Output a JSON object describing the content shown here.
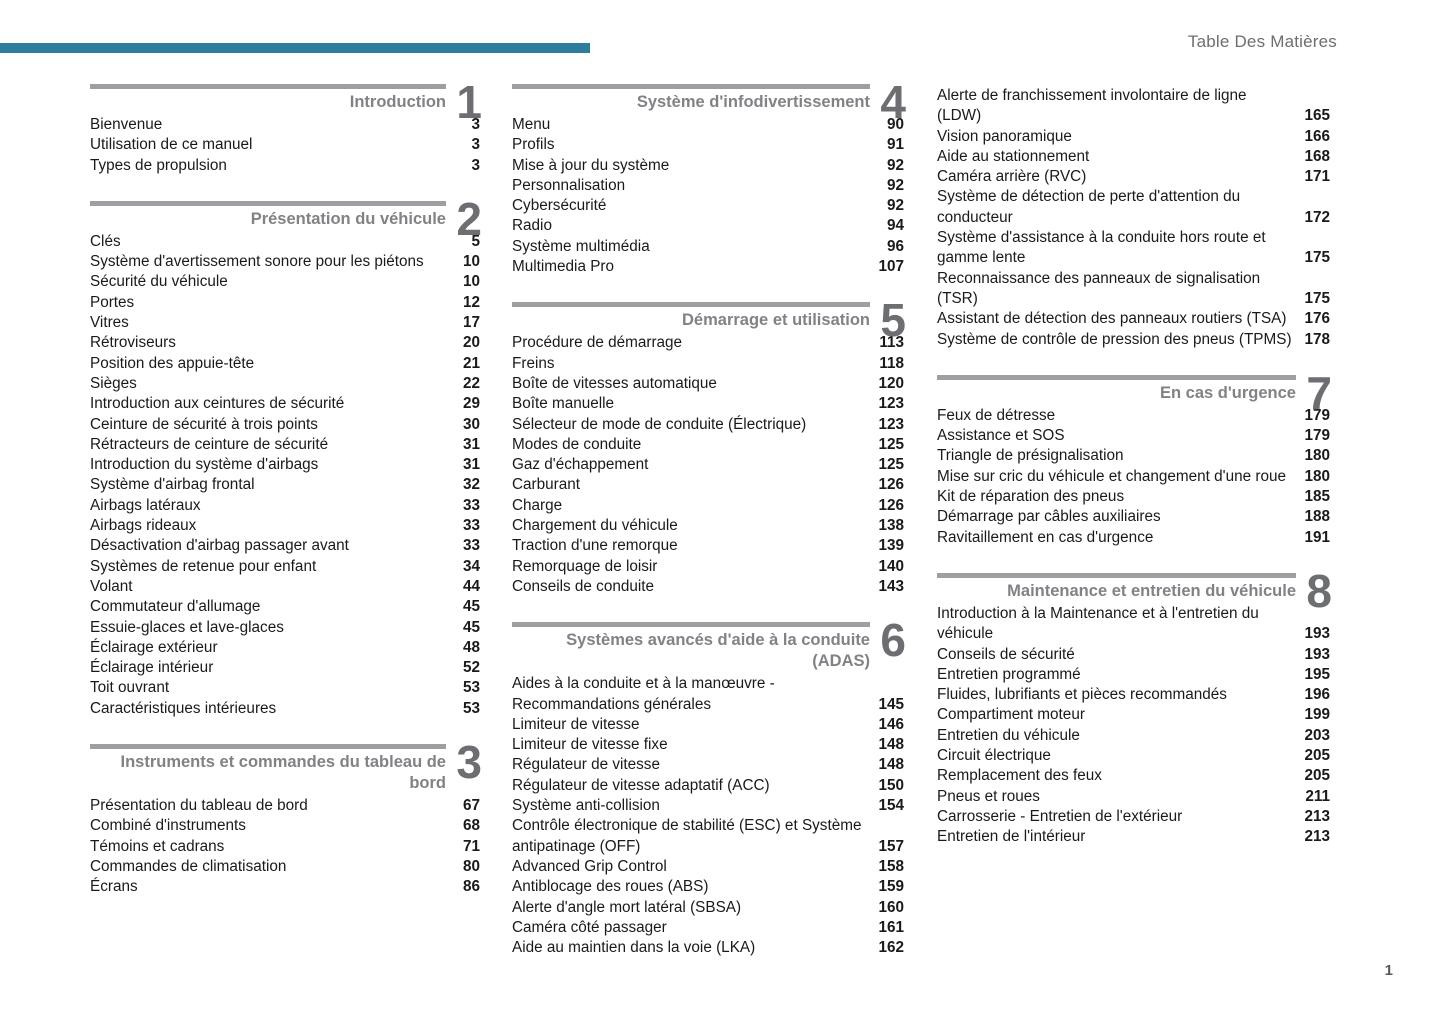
{
  "page": {
    "header_title": "Table Des Matières",
    "page_number": "1"
  },
  "colors": {
    "accent_teal": "#2E7D9E",
    "section_rule_gray": "#9D9FA2",
    "heading_gray": "#808285",
    "numeral_gray": "#6D6E71",
    "body_text": "#1A1A1A"
  },
  "columns": [
    {
      "sections": [
        {
          "number": "1",
          "title": "Introduction",
          "entries": [
            {
              "label": "Bienvenue",
              "page": "3"
            },
            {
              "label": "Utilisation de ce manuel",
              "page": "3"
            },
            {
              "label": "Types de propulsion",
              "page": "3"
            }
          ]
        },
        {
          "number": "2",
          "title": "Présentation du véhicule",
          "entries": [
            {
              "label": "Clés",
              "page": "5"
            },
            {
              "label": "Système d'avertissement sonore pour les piétons",
              "page": "10"
            },
            {
              "label": "Sécurité du véhicule",
              "page": "10"
            },
            {
              "label": "Portes",
              "page": "12"
            },
            {
              "label": "Vitres",
              "page": "17"
            },
            {
              "label": "Rétroviseurs",
              "page": "20"
            },
            {
              "label": "Position des appuie-tête",
              "page": "21"
            },
            {
              "label": "Sièges",
              "page": "22"
            },
            {
              "label": "Introduction aux ceintures de sécurité",
              "page": "29"
            },
            {
              "label": "Ceinture de sécurité à trois points",
              "page": "30"
            },
            {
              "label": "Rétracteurs de ceinture de sécurité",
              "page": "31"
            },
            {
              "label": "Introduction du système d'airbags",
              "page": "31"
            },
            {
              "label": "Système d'airbag frontal",
              "page": "32"
            },
            {
              "label": "Airbags latéraux",
              "page": "33"
            },
            {
              "label": "Airbags rideaux",
              "page": "33"
            },
            {
              "label": "Désactivation d'airbag passager avant",
              "page": "33"
            },
            {
              "label": "Systèmes de retenue pour enfant",
              "page": "34"
            },
            {
              "label": "Volant",
              "page": "44"
            },
            {
              "label": "Commutateur d'allumage",
              "page": "45"
            },
            {
              "label": "Essuie-glaces et lave-glaces",
              "page": "45"
            },
            {
              "label": "Éclairage extérieur",
              "page": "48"
            },
            {
              "label": "Éclairage intérieur",
              "page": "52"
            },
            {
              "label": "Toit ouvrant",
              "page": "53"
            },
            {
              "label": "Caractéristiques intérieures",
              "page": "53"
            }
          ]
        },
        {
          "number": "3",
          "title": "Instruments et commandes du tableau de bord",
          "entries": [
            {
              "label": "Présentation du tableau de bord",
              "page": "67"
            },
            {
              "label": "Combiné d'instruments",
              "page": "68"
            },
            {
              "label": "Témoins et cadrans",
              "page": "71"
            },
            {
              "label": "Commandes de climatisation",
              "page": "80"
            },
            {
              "label": "Écrans",
              "page": "86"
            }
          ]
        }
      ]
    },
    {
      "sections": [
        {
          "number": "4",
          "title": "Système d'infodivertissement",
          "entries": [
            {
              "label": "Menu",
              "page": "90"
            },
            {
              "label": "Profils",
              "page": "91"
            },
            {
              "label": "Mise à jour du système",
              "page": "92"
            },
            {
              "label": "Personnalisation",
              "page": "92"
            },
            {
              "label": "Cybersécurité",
              "page": "92"
            },
            {
              "label": "Radio",
              "page": "94"
            },
            {
              "label": "Système multimédia",
              "page": "96"
            },
            {
              "label": "Multimedia Pro",
              "page": "107"
            }
          ]
        },
        {
          "number": "5",
          "title": "Démarrage et utilisation",
          "entries": [
            {
              "label": "Procédure de démarrage",
              "page": "113"
            },
            {
              "label": "Freins",
              "page": "118"
            },
            {
              "label": "Boîte de vitesses automatique",
              "page": "120"
            },
            {
              "label": "Boîte manuelle",
              "page": "123"
            },
            {
              "label": "Sélecteur de mode de conduite (Électrique)",
              "page": "123"
            },
            {
              "label": "Modes de conduite",
              "page": "125"
            },
            {
              "label": "Gaz d'échappement",
              "page": "125"
            },
            {
              "label": "Carburant",
              "page": "126"
            },
            {
              "label": "Charge",
              "page": "126"
            },
            {
              "label": "Chargement du véhicule",
              "page": "138"
            },
            {
              "label": "Traction d'une remorque",
              "page": "139"
            },
            {
              "label": "Remorquage de loisir",
              "page": "140"
            },
            {
              "label": "Conseils de conduite",
              "page": "143"
            }
          ]
        },
        {
          "number": "6",
          "title": "Systèmes avancés d'aide à la conduite (ADAS)",
          "entries": [
            {
              "label": "Aides à la conduite et à la manœuvre - Recommandations générales",
              "page": "145"
            },
            {
              "label": "Limiteur de vitesse",
              "page": "146"
            },
            {
              "label": "Limiteur de vitesse fixe",
              "page": "148"
            },
            {
              "label": "Régulateur de vitesse",
              "page": "148"
            },
            {
              "label": "Régulateur de vitesse adaptatif (ACC)",
              "page": "150"
            },
            {
              "label": "Système anti-collision",
              "page": "154"
            },
            {
              "label": "Contrôle électronique de stabilité (ESC) et Système antipatinage (OFF)",
              "page": "157"
            },
            {
              "label": "Advanced Grip Control",
              "page": "158"
            },
            {
              "label": "Antiblocage des roues (ABS)",
              "page": "159"
            },
            {
              "label": "Alerte d'angle mort latéral (SBSA)",
              "page": "160"
            },
            {
              "label": "Caméra côté passager",
              "page": "161"
            },
            {
              "label": "Aide au maintien dans la voie (LKA)",
              "page": "162"
            }
          ]
        }
      ]
    },
    {
      "sections": [
        {
          "number": "6",
          "title": null,
          "continuation": true,
          "entries": [
            {
              "label": "Alerte de franchissement involontaire de ligne (LDW)",
              "page": "165"
            },
            {
              "label": "Vision panoramique",
              "page": "166"
            },
            {
              "label": "Aide au stationnement",
              "page": "168"
            },
            {
              "label": "Caméra arrière (RVC)",
              "page": "171"
            },
            {
              "label": "Système de détection de perte d'attention du conducteur",
              "page": "172"
            },
            {
              "label": "Système d'assistance à la conduite hors route et gamme lente",
              "page": "175"
            },
            {
              "label": "Reconnaissance des panneaux de signalisation (TSR)",
              "page": "175"
            },
            {
              "label": "Assistant de détection des panneaux routiers (TSA)",
              "page": "176"
            },
            {
              "label": "Système de contrôle de pression des pneus (TPMS)",
              "page": "178"
            }
          ]
        },
        {
          "number": "7",
          "title": "En cas d'urgence",
          "entries": [
            {
              "label": "Feux de détresse",
              "page": "179"
            },
            {
              "label": "Assistance et SOS",
              "page": "179"
            },
            {
              "label": "Triangle de présignalisation",
              "page": "180"
            },
            {
              "label": "Mise sur cric du véhicule et changement d'une roue",
              "page": "180"
            },
            {
              "label": "Kit de réparation des pneus",
              "page": "185"
            },
            {
              "label": "Démarrage par câbles auxiliaires",
              "page": "188"
            },
            {
              "label": "Ravitaillement en cas d'urgence",
              "page": "191"
            }
          ]
        },
        {
          "number": "8",
          "title": "Maintenance et entretien du véhicule",
          "entries": [
            {
              "label": "Introduction à la Maintenance et à l'entretien du véhicule",
              "page": "193"
            },
            {
              "label": "Conseils de sécurité",
              "page": "193"
            },
            {
              "label": "Entretien programmé",
              "page": "195"
            },
            {
              "label": "Fluides, lubrifiants et pièces recommandés",
              "page": "196"
            },
            {
              "label": "Compartiment moteur",
              "page": "199"
            },
            {
              "label": "Entretien du véhicule",
              "page": "203"
            },
            {
              "label": "Circuit électrique",
              "page": "205"
            },
            {
              "label": "Remplacement des feux",
              "page": "205"
            },
            {
              "label": "Pneus et roues",
              "page": "211"
            },
            {
              "label": "Carrosserie - Entretien de l'extérieur",
              "page": "213"
            },
            {
              "label": "Entretien de l'intérieur",
              "page": "213"
            }
          ]
        }
      ]
    }
  ]
}
